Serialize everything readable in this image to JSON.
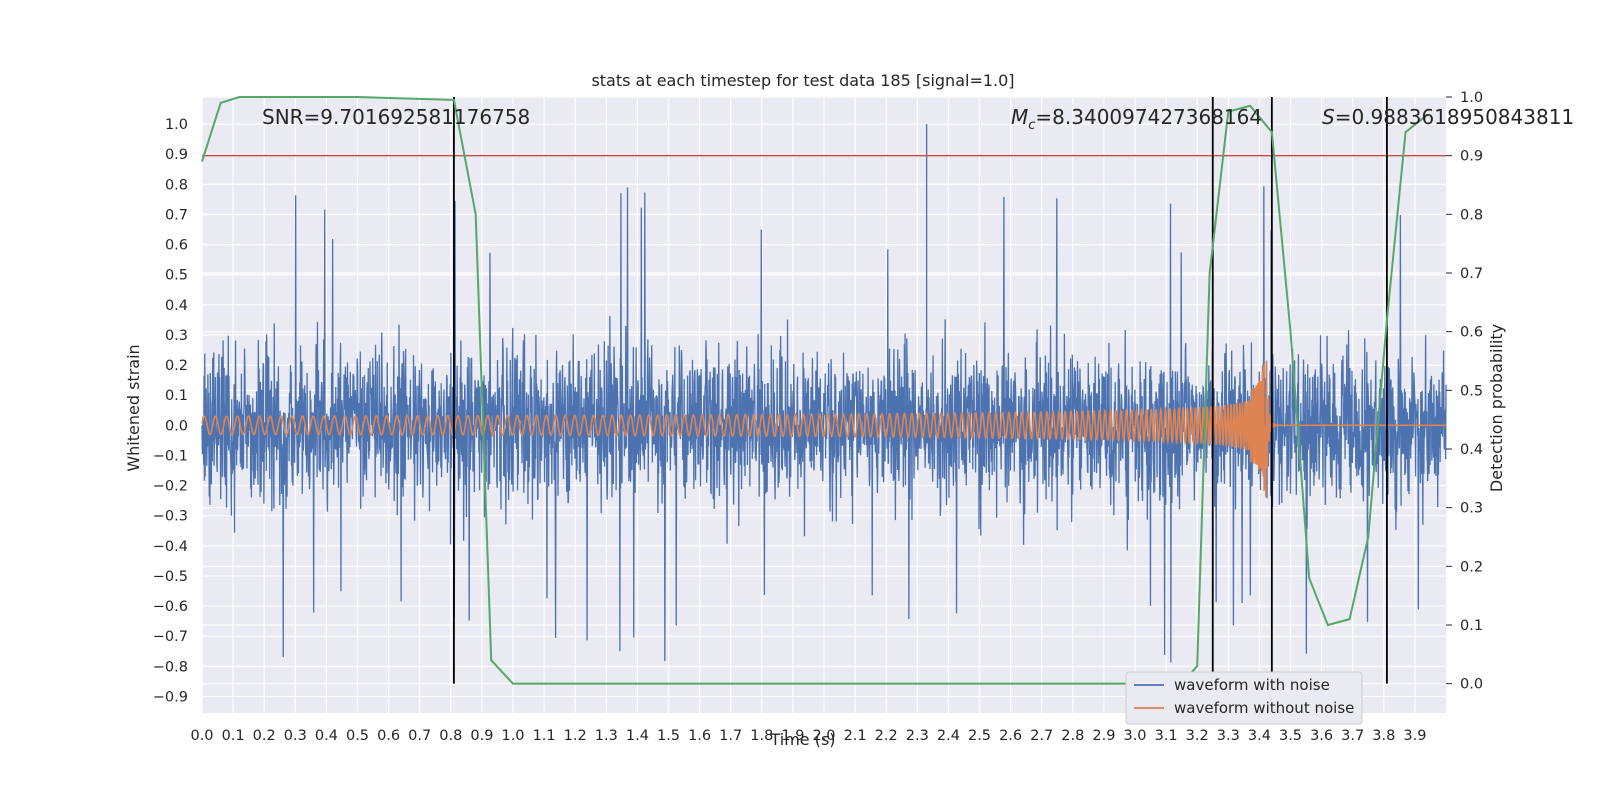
{
  "chart_data": {
    "type": "line",
    "title": "stats at each timestep for test data 185 [signal=1.0]",
    "xlabel": "Time (s)",
    "ylabel_left": "Whitened strain",
    "ylabel_right": "Detection probability",
    "xlim": [
      0.0,
      4.0
    ],
    "ylim_left": [
      -0.955,
      1.09
    ],
    "ylim_right": [
      -0.05,
      1.0
    ],
    "x_ticks": [
      "0.0",
      "0.1",
      "0.2",
      "0.3",
      "0.4",
      "0.5",
      "0.6",
      "0.7",
      "0.8",
      "0.9",
      "1.0",
      "1.1",
      "1.2",
      "1.3",
      "1.4",
      "1.5",
      "1.6",
      "1.7",
      "1.8",
      "1.9",
      "2.0",
      "2.1",
      "2.2",
      "2.3",
      "2.4",
      "2.5",
      "2.6",
      "2.7",
      "2.8",
      "2.9",
      "3.0",
      "3.1",
      "3.2",
      "3.3",
      "3.4",
      "3.5",
      "3.6",
      "3.7",
      "3.8",
      "3.9"
    ],
    "y_ticks_left": [
      "1.0",
      "0.9",
      "0.8",
      "0.7",
      "0.6",
      "0.5",
      "0.4",
      "0.3",
      "0.2",
      "0.1",
      "0.0",
      "−0.1",
      "−0.2",
      "−0.3",
      "−0.4",
      "−0.5",
      "−0.6",
      "−0.7",
      "−0.8",
      "−0.9"
    ],
    "y_ticks_right": [
      "1.0",
      "0.9",
      "0.8",
      "0.7",
      "0.6",
      "0.5",
      "0.4",
      "0.3",
      "0.2",
      "0.1",
      "0.0"
    ],
    "grid": true,
    "legend_position": "bottom-right",
    "annotations": {
      "snr": "SNR=9.701692581176758",
      "mc_symbol": "M",
      "mc_sub": "c",
      "mc_value": "=8.340097427368164",
      "s_symbol": "S",
      "s_value": "=0.9883618950843811"
    },
    "series": [
      {
        "name": "waveform with noise",
        "color": "#4c72b0",
        "kind": "noise",
        "axis": "left",
        "amplitude_typical": 0.35,
        "amplitude_peak": 1.0
      },
      {
        "name": "waveform without noise",
        "color": "#dd8452",
        "kind": "chirp",
        "axis": "left",
        "merger_time": 3.42,
        "amplitude_start": 0.03,
        "amplitude_peak": 0.27,
        "amplitude_min": -0.36
      },
      {
        "color": "#55a868",
        "kind": "detection_probability",
        "axis": "right",
        "x": [
          0.0,
          0.06,
          0.12,
          0.25,
          0.5,
          0.81,
          0.88,
          0.93,
          1.0,
          1.2,
          1.5,
          2.0,
          2.5,
          3.0,
          3.15,
          3.2,
          3.24,
          3.3,
          3.37,
          3.44,
          3.5,
          3.56,
          3.62,
          3.69,
          3.75,
          3.81,
          3.87,
          3.94
        ],
        "y": [
          0.89,
          0.99,
          1.0,
          1.0,
          1.0,
          0.995,
          0.8,
          0.04,
          0.0,
          0.0,
          0.0,
          0.0,
          0.0,
          0.0,
          0.0,
          0.03,
          0.7,
          0.975,
          0.985,
          0.94,
          0.6,
          0.18,
          0.1,
          0.11,
          0.25,
          0.62,
          0.94,
          0.97
        ]
      }
    ],
    "threshold_line": {
      "value": 0.9,
      "axis": "right",
      "color": "#c44e52"
    },
    "vertical_markers": {
      "x": [
        0.81,
        3.25,
        3.44,
        3.81
      ],
      "color": "#000000",
      "top": 1.0,
      "bottom": 0.0,
      "axis": "right"
    }
  }
}
